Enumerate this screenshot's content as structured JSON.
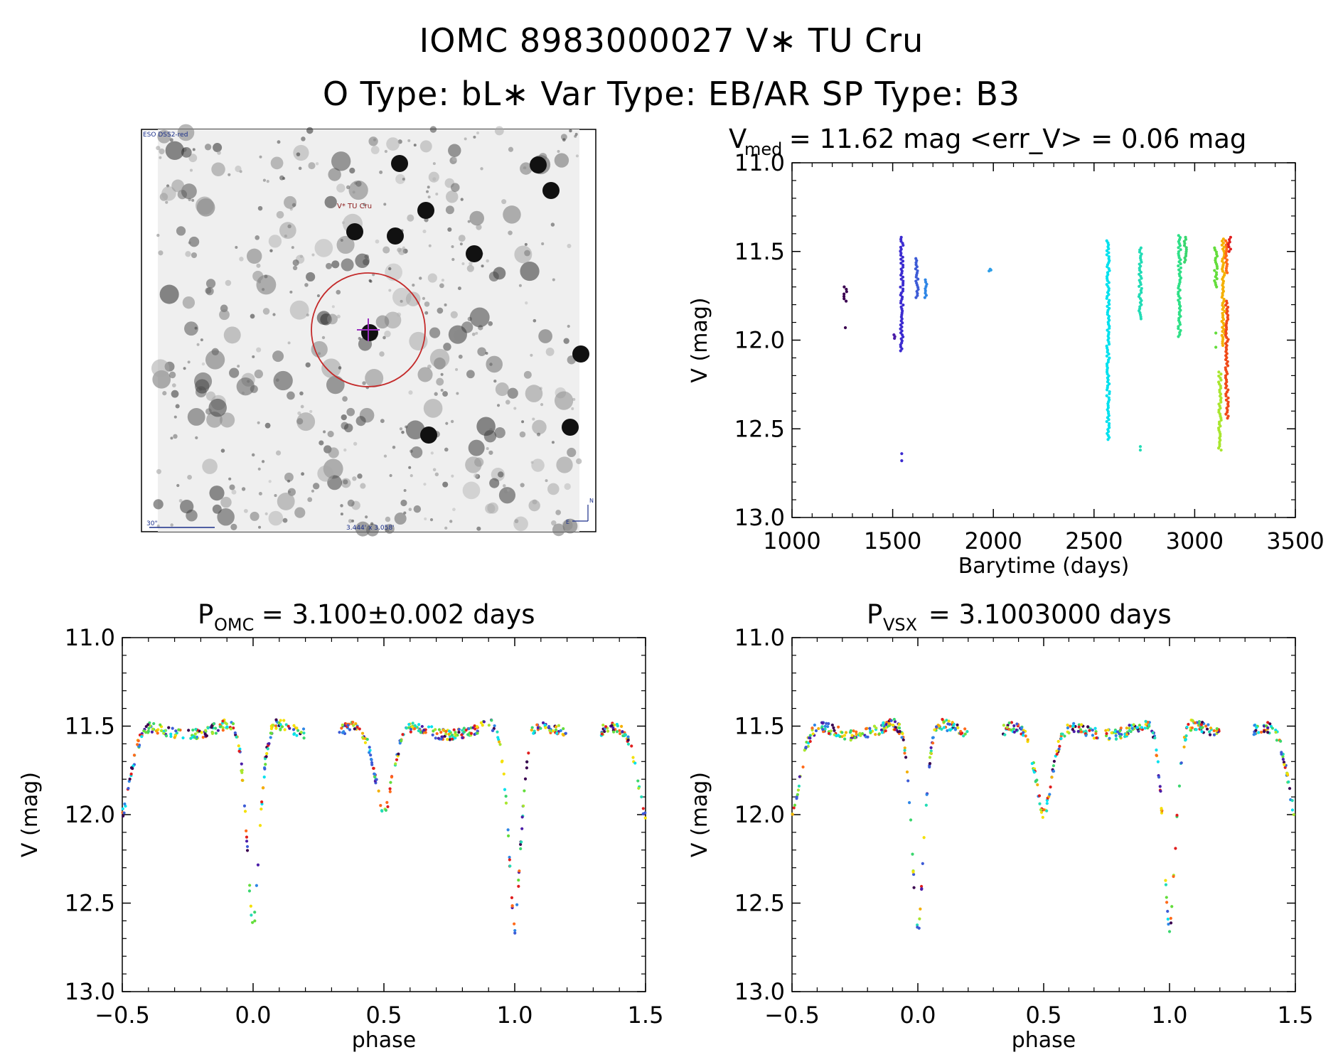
{
  "header": {
    "title": "IOMC 8983000027   V∗ TU Cru",
    "subtitle": "O Type: bL∗  Var Type: EB/AR  SP Type: B3"
  },
  "finder_chart": {
    "survey_label": "ESO DSS2-red",
    "target_label": "V* TU Cru",
    "scale_label": "30\"",
    "fov_label": "3.444' x 3.058'",
    "compass_north": "N",
    "compass_east": "E"
  },
  "chart_data": [
    {
      "type": "scatter",
      "id": "lightcurve",
      "title_main": "V",
      "title_sub": "med",
      "title_rest": " = 11.62 mag <err_V> = 0.06 mag",
      "xlabel": "Barytime (days)",
      "ylabel": "V (mag)",
      "xlim": [
        1000,
        3500
      ],
      "ylim": [
        13.0,
        11.0
      ],
      "y_inverted": true,
      "xticks": [
        1000,
        1500,
        2000,
        2500,
        3000,
        3500
      ],
      "yticks": [
        11.0,
        11.5,
        12.0,
        12.5,
        13.0
      ],
      "xticklabels": [
        "1000",
        "1500",
        "2000",
        "2500",
        "3000",
        "3500"
      ],
      "yticklabels": [
        "11.0",
        "11.5",
        "12.0",
        "12.5",
        "13.0"
      ],
      "colormap": "rainbow (time-ordered)",
      "groups": [
        {
          "x": 1265,
          "ymin": 11.7,
          "ymax": 11.78,
          "extra": [
            11.93
          ],
          "color": "#3a0050"
        },
        {
          "x": 1505,
          "ymin": 11.97,
          "ymax": 11.99,
          "extra": [],
          "color": "#4b1da8"
        },
        {
          "x": 1545,
          "ymin": 11.42,
          "ymax": 12.06,
          "extra": [
            12.64,
            12.68
          ],
          "color": "#3c2bd0"
        },
        {
          "x": 1620,
          "ymin": 11.54,
          "ymax": 11.76,
          "extra": [],
          "color": "#3d5bd6"
        },
        {
          "x": 1665,
          "ymin": 11.66,
          "ymax": 11.76,
          "extra": [],
          "color": "#2e86e6"
        },
        {
          "x": 1985,
          "ymin": 11.6,
          "ymax": 11.61,
          "extra": [],
          "color": "#2f9fe8"
        },
        {
          "x": 2570,
          "ymin": 11.44,
          "ymax": 12.56,
          "extra": [],
          "color": "#00e1ee"
        },
        {
          "x": 2730,
          "ymin": 11.48,
          "ymax": 11.88,
          "extra": [
            12.6,
            12.62
          ],
          "color": "#22dcb6"
        },
        {
          "x": 2925,
          "ymin": 11.41,
          "ymax": 11.98,
          "extra": [],
          "color": "#2fe087"
        },
        {
          "x": 2955,
          "ymin": 11.42,
          "ymax": 11.56,
          "extra": [],
          "color": "#3ad66e"
        },
        {
          "x": 3105,
          "ymin": 11.48,
          "ymax": 11.7,
          "extra": [
            11.96,
            12.04
          ],
          "color": "#63dd3b"
        },
        {
          "x": 3125,
          "ymin": 12.18,
          "ymax": 12.62,
          "extra": [],
          "color": "#a9e62e"
        },
        {
          "x": 3142,
          "ymin": 11.43,
          "ymax": 12.03,
          "extra": [],
          "color": "#f4b000"
        },
        {
          "x": 3155,
          "ymin": 11.44,
          "ymax": 11.62,
          "extra": [],
          "color": "#ff6a1a"
        },
        {
          "x": 3160,
          "ymin": 11.78,
          "ymax": 12.44,
          "extra": [],
          "color": "#f04a18"
        },
        {
          "x": 3172,
          "ymin": 11.42,
          "ymax": 11.5,
          "extra": [],
          "color": "#e01e1e"
        }
      ]
    },
    {
      "type": "scatter",
      "id": "phase_omc",
      "title_main": "P",
      "title_sub": "OMC",
      "title_rest": " = 3.100±0.002 days",
      "xlabel": "phase",
      "ylabel": "V (mag)",
      "xlim": [
        -0.5,
        1.5
      ],
      "ylim": [
        13.0,
        11.0
      ],
      "y_inverted": true,
      "xticks": [
        -0.5,
        0.0,
        0.5,
        1.0,
        1.5
      ],
      "yticks": [
        11.0,
        11.5,
        12.0,
        12.5,
        13.0
      ],
      "xticklabels": [
        "−0.5",
        "0.0",
        "0.5",
        "1.0",
        "1.5"
      ],
      "yticklabels": [
        "11.0",
        "11.5",
        "12.0",
        "12.5",
        "13.0"
      ],
      "period_days": 3.1,
      "phase_curve": {
        "primary_min_phase": 0.0,
        "primary_min_mag": 12.65,
        "secondary_min_phase": 0.5,
        "secondary_min_mag": 12.0,
        "max_mag": 11.45
      }
    },
    {
      "type": "scatter",
      "id": "phase_vsx",
      "title_main": "P",
      "title_sub": "VSX",
      "title_rest": " = 3.1003000 days",
      "xlabel": "phase",
      "ylabel": "V (mag)",
      "xlim": [
        -0.5,
        1.5
      ],
      "ylim": [
        13.0,
        11.0
      ],
      "y_inverted": true,
      "xticks": [
        -0.5,
        0.0,
        0.5,
        1.0,
        1.5
      ],
      "yticks": [
        11.0,
        11.5,
        12.0,
        12.5,
        13.0
      ],
      "xticklabels": [
        "−0.5",
        "0.0",
        "0.5",
        "1.0",
        "1.5"
      ],
      "yticklabels": [
        "11.0",
        "11.5",
        "12.0",
        "12.5",
        "13.0"
      ],
      "period_days": 3.1003,
      "phase_curve": {
        "primary_min_phase": 0.0,
        "primary_min_mag": 12.67,
        "secondary_min_phase": 0.5,
        "secondary_min_mag": 12.0,
        "max_mag": 11.45
      }
    }
  ],
  "colors": {
    "axis": "#000000",
    "finder_circle": "#c42a2a",
    "finder_label": "#8a1a1a",
    "finder_crosshair": "#9b2fbf",
    "finder_text_blue": "#1a2f8a"
  }
}
